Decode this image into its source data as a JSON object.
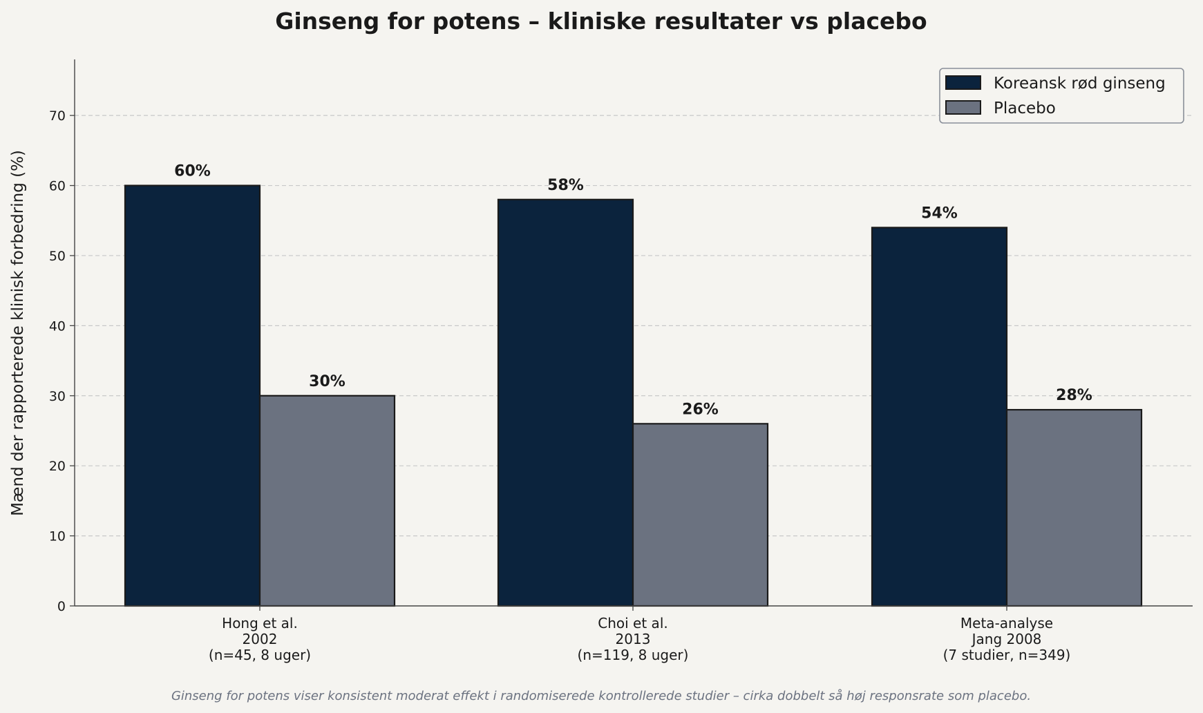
{
  "chart_data": {
    "type": "bar",
    "title": "Ginseng for potens – kliniske resultater vs placebo",
    "ylabel": "Mænd der rapporterede klinisk forbedring (%)",
    "xlabel": "",
    "ylim": [
      0,
      78
    ],
    "yticks": [
      0,
      10,
      20,
      30,
      40,
      50,
      60,
      70
    ],
    "grid": "y-dashed",
    "legend_position": "top-right",
    "categories": [
      [
        "Hong et al.",
        "2002",
        "(n=45, 8 uger)"
      ],
      [
        "Choi et al.",
        "2013",
        "(n=119, 8 uger)"
      ],
      [
        "Meta-analyse",
        "Jang 2008",
        "(7 studier, n=349)"
      ]
    ],
    "series": [
      {
        "name": "Koreansk rød ginseng",
        "color": "#0b233d",
        "values": [
          60,
          58,
          54
        ],
        "labels": [
          "60%",
          "58%",
          "54%"
        ]
      },
      {
        "name": "Placebo",
        "color": "#6b7280",
        "values": [
          30,
          26,
          28
        ],
        "labels": [
          "30%",
          "26%",
          "28%"
        ]
      }
    ],
    "caption": "Ginseng for potens viser konsistent moderat effekt i randomiserede kontrollerede studier – cirka dobbelt så høj responsrate som placebo."
  }
}
